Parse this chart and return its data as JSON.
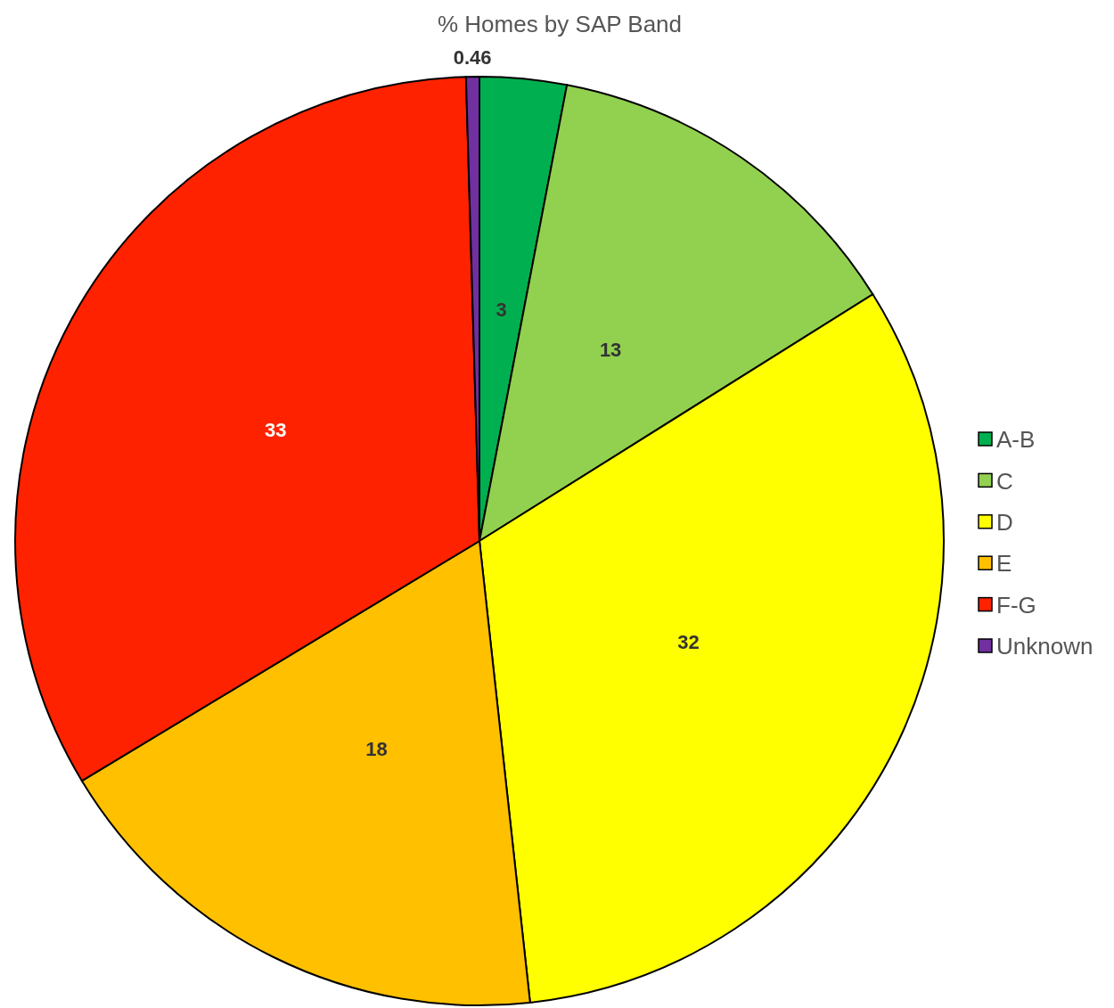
{
  "chart_data": {
    "type": "pie",
    "title": "% Homes by SAP Band",
    "categories": [
      "A-B",
      "C",
      "D",
      "E",
      "F-G",
      "Unknown"
    ],
    "values": [
      3,
      13,
      32,
      18,
      33,
      0.46
    ],
    "colors": [
      "#00b050",
      "#92d050",
      "#ffff00",
      "#ffc000",
      "#ff2200",
      "#7030a0"
    ],
    "data_labels": true,
    "legend": "right"
  }
}
